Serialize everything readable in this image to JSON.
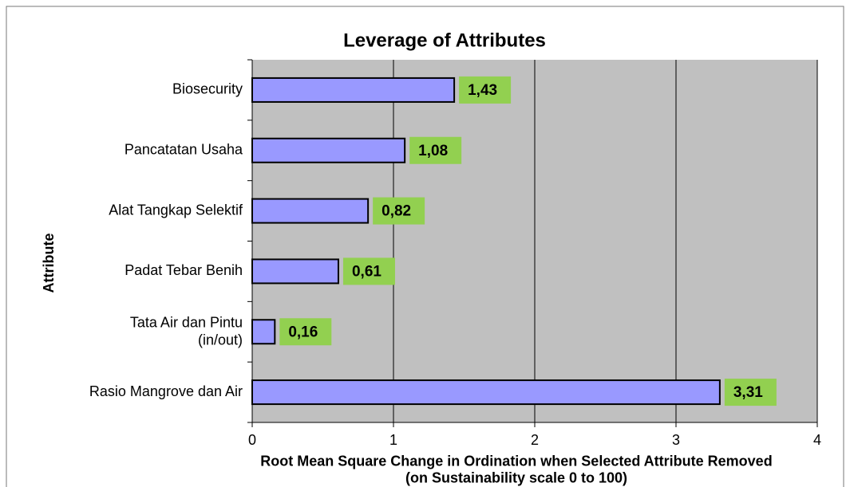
{
  "chart_data": {
    "type": "bar",
    "orientation": "horizontal",
    "title": "Leverage  of Attributes",
    "categories": [
      "Biosecurity",
      "Pancatatan Usaha",
      "Alat Tangkap Selektif",
      "Padat Tebar Benih",
      "Tata Air dan Pintu\n(in/out)",
      "Rasio Mangrove dan Air"
    ],
    "values": [
      1.43,
      1.08,
      0.82,
      0.61,
      0.16,
      3.31
    ],
    "value_labels": [
      "1,43",
      "1,08",
      "0,82",
      "0,61",
      "0,16",
      "3,31"
    ],
    "color": "#9999ff",
    "xlim": [
      0,
      4
    ],
    "xticks": [
      0,
      1,
      2,
      3,
      4
    ],
    "grid": true,
    "xlabel": "Root Mean Square Change in Ordination when Selected Attribute Removed\n(on Sustainability scale 0 to 100)",
    "ylabel": "Attribute"
  }
}
